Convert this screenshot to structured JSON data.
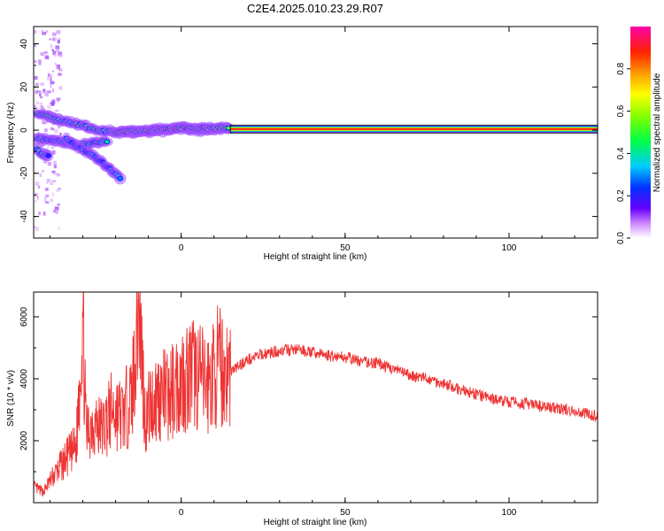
{
  "title": "C2E4.2025.010.23.29.R07",
  "chart_data": [
    {
      "type": "heatmap",
      "xlabel": "Height of straight line (km)",
      "ylabel": "Frequency (Hz)",
      "xlim": [
        -45,
        127
      ],
      "ylim": [
        -50,
        48
      ],
      "xticks": [
        "0",
        "50",
        "100"
      ],
      "xtick_values": [
        0,
        50,
        100
      ],
      "yticks": [
        "40",
        "20",
        "0",
        "-20",
        "-40"
      ],
      "ytick_values": [
        40,
        20,
        0,
        -20,
        -40
      ],
      "colorbar": {
        "label": "Normalized spectral amplitude",
        "ticks": [
          "0.0",
          "0.2",
          "0.4",
          "0.6",
          "0.8"
        ],
        "tick_values": [
          0.0,
          0.2,
          0.4,
          0.6,
          0.8
        ],
        "range": [
          0,
          1
        ],
        "colormap": "white-purple-blue-cyan-green-yellow-orange-red-magenta"
      },
      "ridges": [
        {
          "points": [
            [
              -44,
              8
            ],
            [
              -38,
              5
            ],
            [
              -32,
              3
            ],
            [
              -26,
              0
            ],
            [
              -20,
              -1
            ],
            [
              -12,
              -1
            ],
            [
              -5,
              0
            ],
            [
              0,
              1
            ],
            [
              6,
              0
            ],
            [
              12,
              1
            ],
            [
              15,
              1
            ]
          ],
          "amplitude": 0.5
        },
        {
          "points": [
            [
              -44,
              -4
            ],
            [
              -38,
              -5
            ],
            [
              -32,
              -7
            ],
            [
              -27,
              -6
            ],
            [
              -22,
              -5
            ]
          ],
          "amplitude": 0.4
        },
        {
          "points": [
            [
              -44,
              -9
            ],
            [
              -42,
              -12
            ],
            [
              -40,
              -11
            ]
          ],
          "amplitude": 0.35
        },
        {
          "points": [
            [
              -35,
              -4
            ],
            [
              -30,
              -9
            ],
            [
              -25,
              -14
            ],
            [
              -21,
              -19
            ],
            [
              -18,
              -23
            ]
          ],
          "amplitude": 0.3
        },
        {
          "points": [
            [
              -20,
              -1
            ],
            [
              -10,
              0
            ],
            [
              0,
              1
            ],
            [
              10,
              1
            ],
            [
              15,
              1
            ]
          ],
          "amplitude": 0.7
        }
      ],
      "band": {
        "x_start": 15,
        "x_end": 127,
        "freq": 0.5,
        "amplitude": 1.0
      }
    },
    {
      "type": "line",
      "xlabel": "Height of straight line (km)",
      "ylabel": "SNR (10 * v/v)",
      "xlim": [
        -45,
        127
      ],
      "ylim": [
        0,
        6800
      ],
      "xticks": [
        "0",
        "50",
        "100"
      ],
      "xtick_values": [
        0,
        50,
        100
      ],
      "yticks": [
        "2000",
        "4000",
        "6000"
      ],
      "ytick_values": [
        2000,
        4000,
        6000
      ],
      "color": "#ee3333",
      "series": [
        {
          "x": [
            -45,
            -42,
            -40,
            -36,
            -32,
            -30,
            -29,
            -27,
            -24,
            -21,
            -18,
            -15,
            -13,
            -11,
            -10,
            -7,
            -4,
            0,
            4,
            8,
            11,
            14,
            16,
            20,
            25,
            30,
            35,
            40,
            45,
            50,
            55,
            60,
            65,
            70,
            75,
            80,
            85,
            90,
            95,
            100,
            105,
            110,
            115,
            120,
            127
          ],
          "y": [
            500,
            350,
            700,
            1300,
            1800,
            6200,
            2200,
            2600,
            2400,
            3000,
            2800,
            3400,
            6800,
            2700,
            3000,
            3500,
            3400,
            4000,
            4200,
            3800,
            4400,
            4200,
            4300,
            4600,
            4800,
            4900,
            4950,
            4850,
            4750,
            4700,
            4550,
            4500,
            4300,
            4100,
            4000,
            3850,
            3650,
            3500,
            3350,
            3250,
            3200,
            3100,
            3050,
            2950,
            2800
          ]
        }
      ]
    }
  ]
}
